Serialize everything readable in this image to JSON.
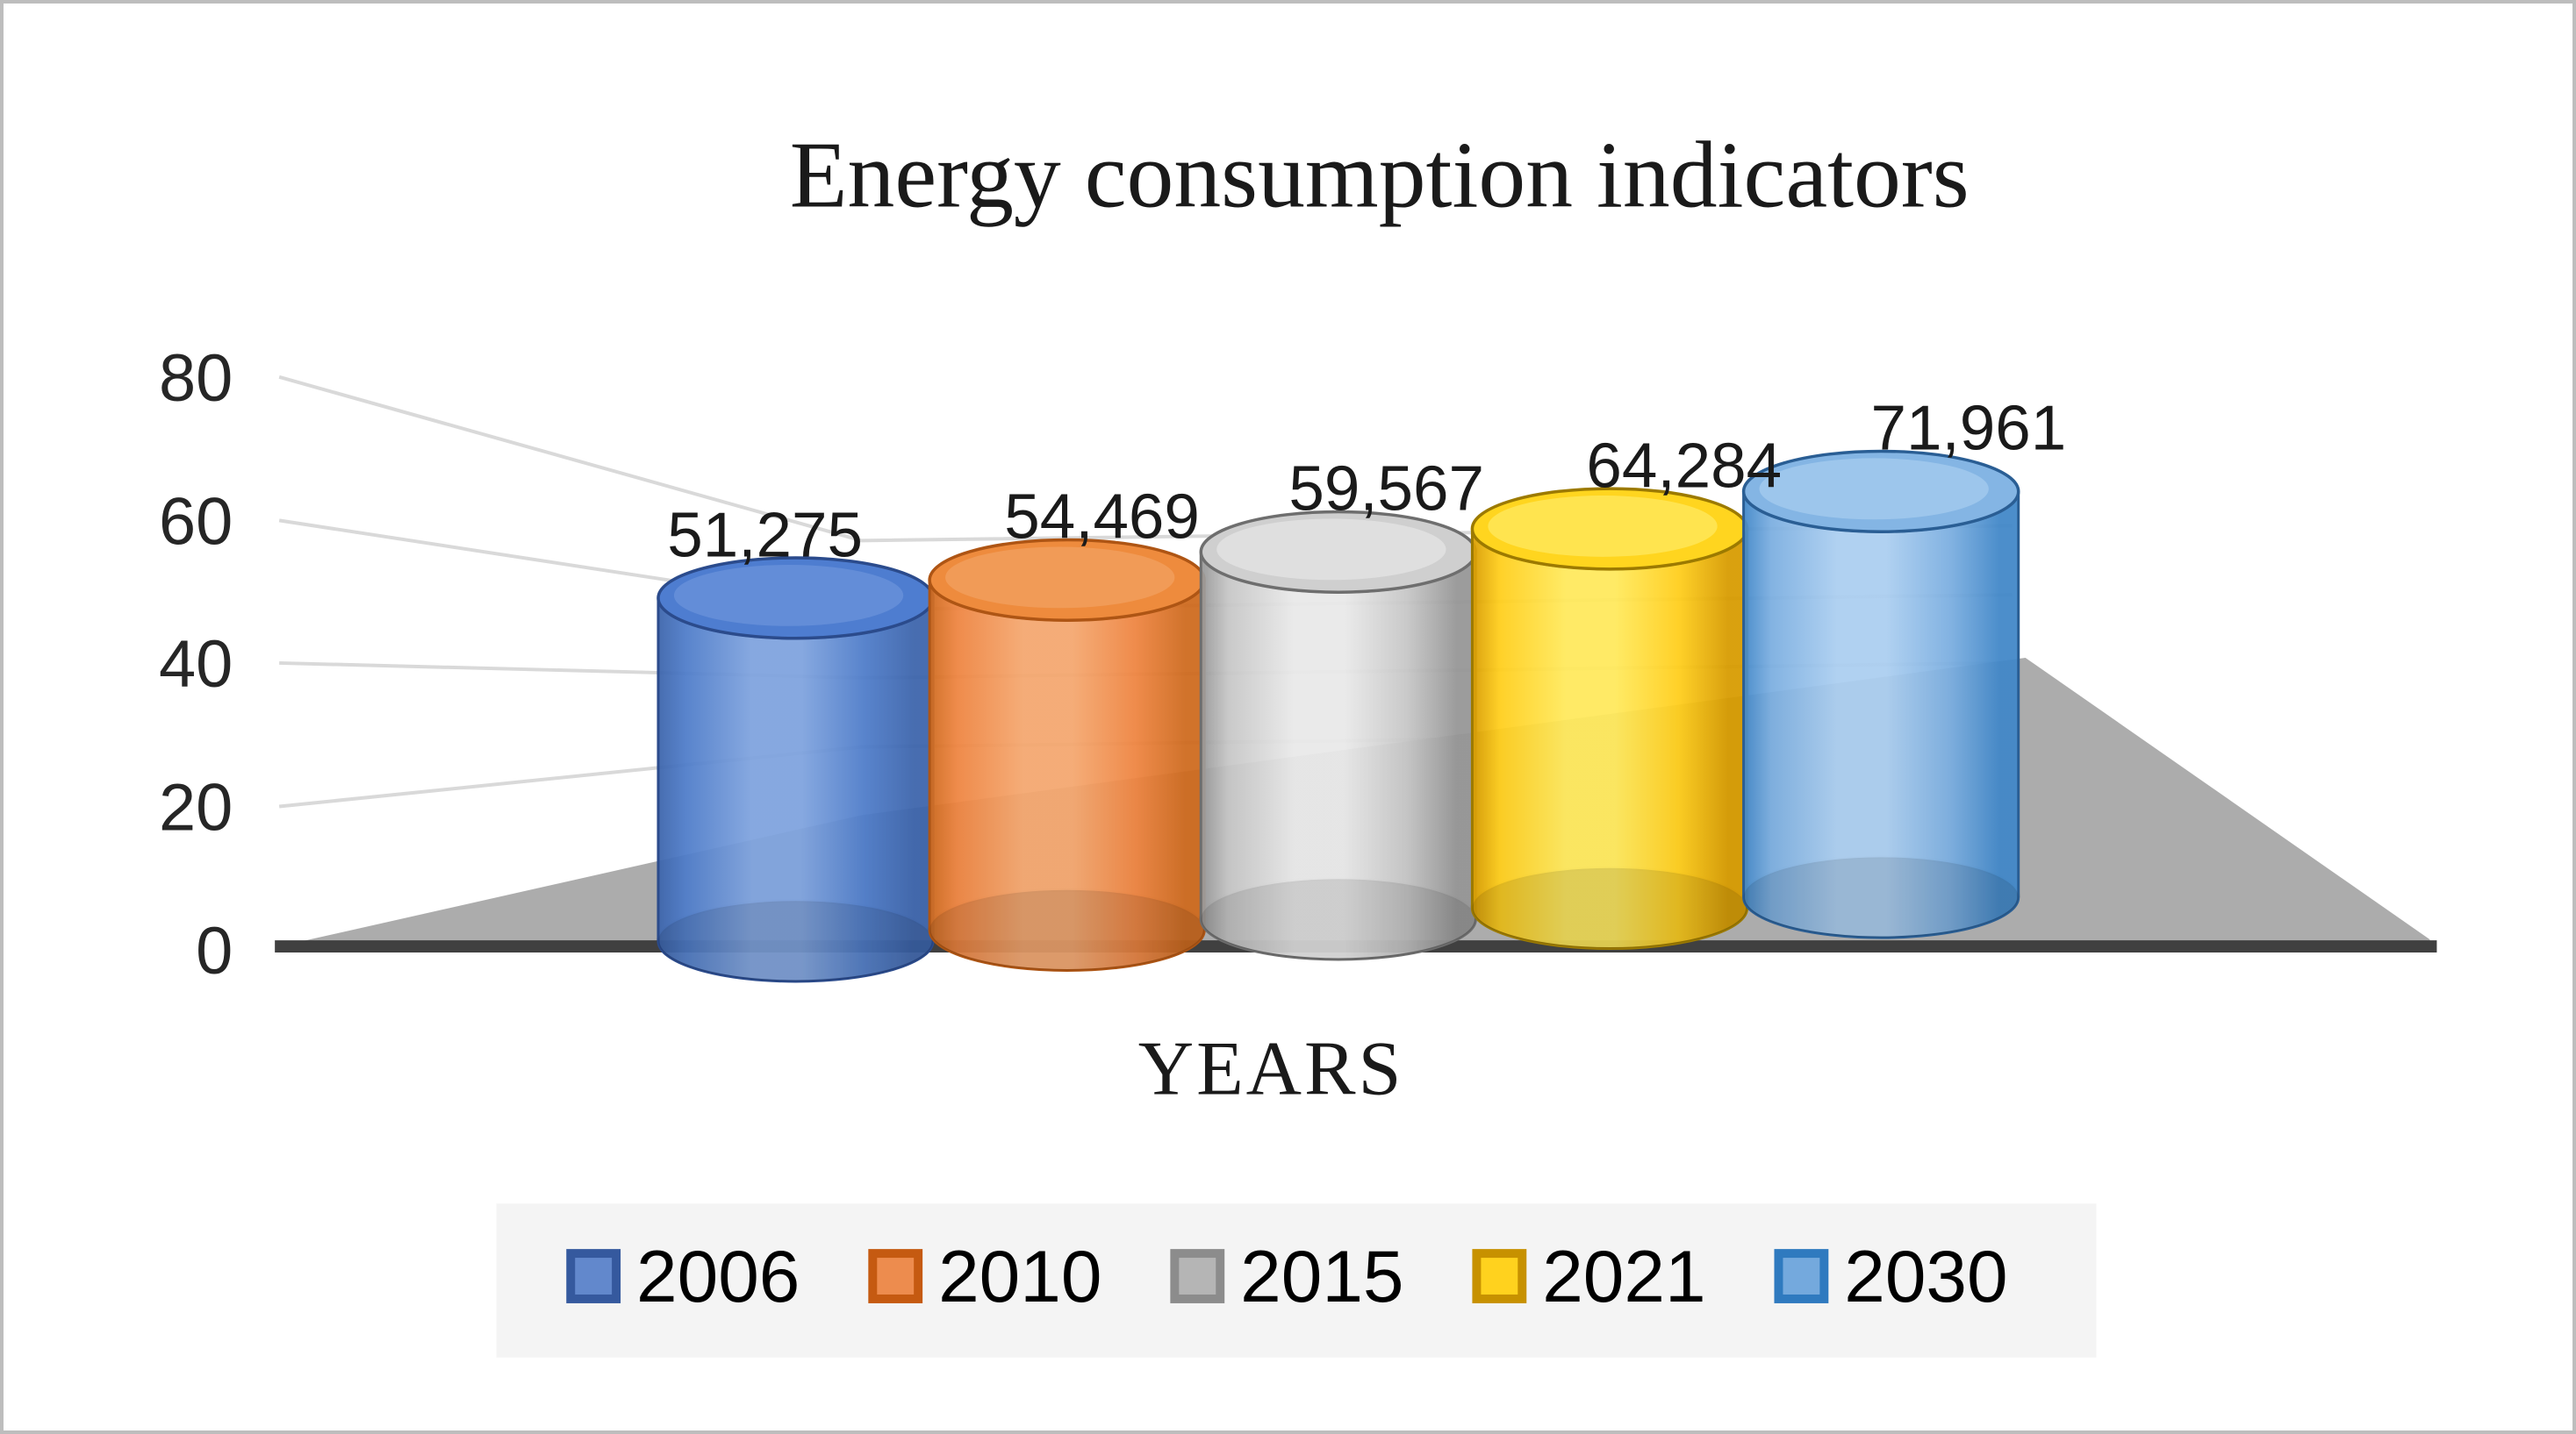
{
  "chart_data": {
    "type": "bar",
    "style": "3d-cylinder",
    "title": "Energy consumption indicators",
    "xlabel": "YEARS",
    "ylabel": "",
    "ylim": [
      0,
      80
    ],
    "y_ticks": [
      0,
      20,
      40,
      60,
      80
    ],
    "grid": true,
    "legend_position": "bottom",
    "categories": [
      "2006",
      "2010",
      "2015",
      "2021",
      "2030"
    ],
    "values": [
      51275,
      54469,
      59567,
      64284,
      71961
    ],
    "value_labels": [
      "51,275",
      "54,469",
      "59,567",
      "64,284",
      "71,961"
    ],
    "values_unit": "thousands (axis shows value / 1000)",
    "series_colors": [
      {
        "name": "2006",
        "mid": "#4E7CC9",
        "light": "#7FA3DE",
        "edge": "#3C64AB",
        "stroke": "#2B4B8C",
        "top": "#4E7DD0",
        "top_light": "#6E96DC",
        "legend_fill": "#6288CC",
        "legend_border": "#35599E"
      },
      {
        "name": "2010",
        "mid": "#EE8440",
        "light": "#F4A76F",
        "edge": "#CE6A1E",
        "stroke": "#AE5514",
        "top": "#EE8B3D",
        "top_light": "#F3A465",
        "legend_fill": "#ED8C4E",
        "legend_border": "#C55A11"
      },
      {
        "name": "2015",
        "mid": "#C6C6C6",
        "light": "#E9E9E9",
        "edge": "#969696",
        "stroke": "#6E6E6E",
        "top": "#CFCFCF",
        "top_light": "#E8E8E8",
        "legend_fill": "#B5B5B5",
        "legend_border": "#8C8C8C"
      },
      {
        "name": "2021",
        "mid": "#FFCE1B",
        "light": "#FFE95C",
        "edge": "#D79B00",
        "stroke": "#9C7A00",
        "top": "#FFD51F",
        "top_light": "#FFEC6A",
        "legend_fill": "#FFD21E",
        "legend_border": "#C79100"
      },
      {
        "name": "2030",
        "mid": "#7BAEE0",
        "light": "#ABCEF0",
        "edge": "#4187C8",
        "stroke": "#2A5E94",
        "top": "#84B5E4",
        "top_light": "#ABCFF0",
        "legend_fill": "#74A9DD",
        "legend_border": "#2F7ABF"
      }
    ],
    "colors": {
      "axis_line": "#404040",
      "gridline": "#D9D9D9",
      "floor": "#ACACAC",
      "legend_background": "#F4F4F4",
      "text": "#1A1A1A",
      "frame_border": "#BDBDBD",
      "background": "#FFFFFF"
    }
  }
}
